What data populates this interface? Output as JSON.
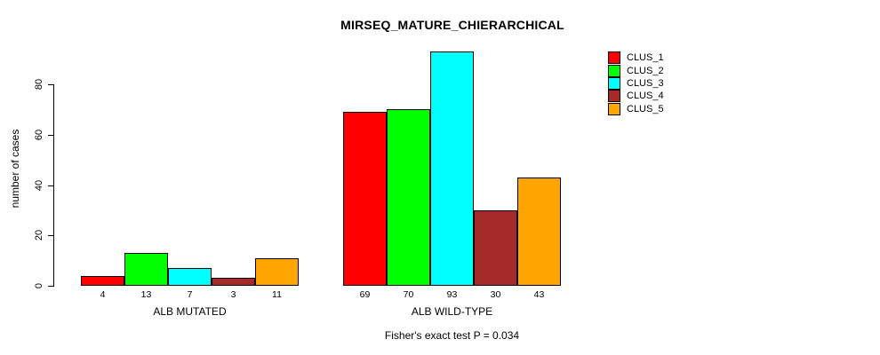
{
  "title": "MIRSEQ_MATURE_CHIERARCHICAL",
  "caption": "Fisher's exact test P = 0.034",
  "chart_data": {
    "type": "bar",
    "title": "MIRSEQ_MATURE_CHIERARCHICAL",
    "xlabel": "",
    "ylabel": "number of cases",
    "categories": [
      "ALB MUTATED",
      "ALB WILD-TYPE"
    ],
    "groups": [
      "ALB MUTATED",
      "ALB WILD-TYPE"
    ],
    "series": [
      {
        "name": "CLUS_1",
        "color": "#FF0000",
        "values": [
          4,
          69
        ]
      },
      {
        "name": "CLUS_2",
        "color": "#00FF00",
        "values": [
          13,
          70
        ]
      },
      {
        "name": "CLUS_3",
        "color": "#00FFFF",
        "values": [
          7,
          93
        ]
      },
      {
        "name": "CLUS_4",
        "color": "#A52A2A",
        "values": [
          3,
          30
        ]
      },
      {
        "name": "CLUS_5",
        "color": "#FFA500",
        "values": [
          11,
          43
        ]
      }
    ],
    "bar_value_labels": [
      [
        4,
        13,
        7,
        3,
        11
      ],
      [
        69,
        70,
        93,
        30,
        43
      ]
    ],
    "yticks": [
      0,
      20,
      40,
      60,
      80
    ],
    "ylim": [
      0,
      93
    ],
    "grid": false,
    "legend_position": "topright",
    "annotation": "Fisher's exact test P = 0.034"
  }
}
